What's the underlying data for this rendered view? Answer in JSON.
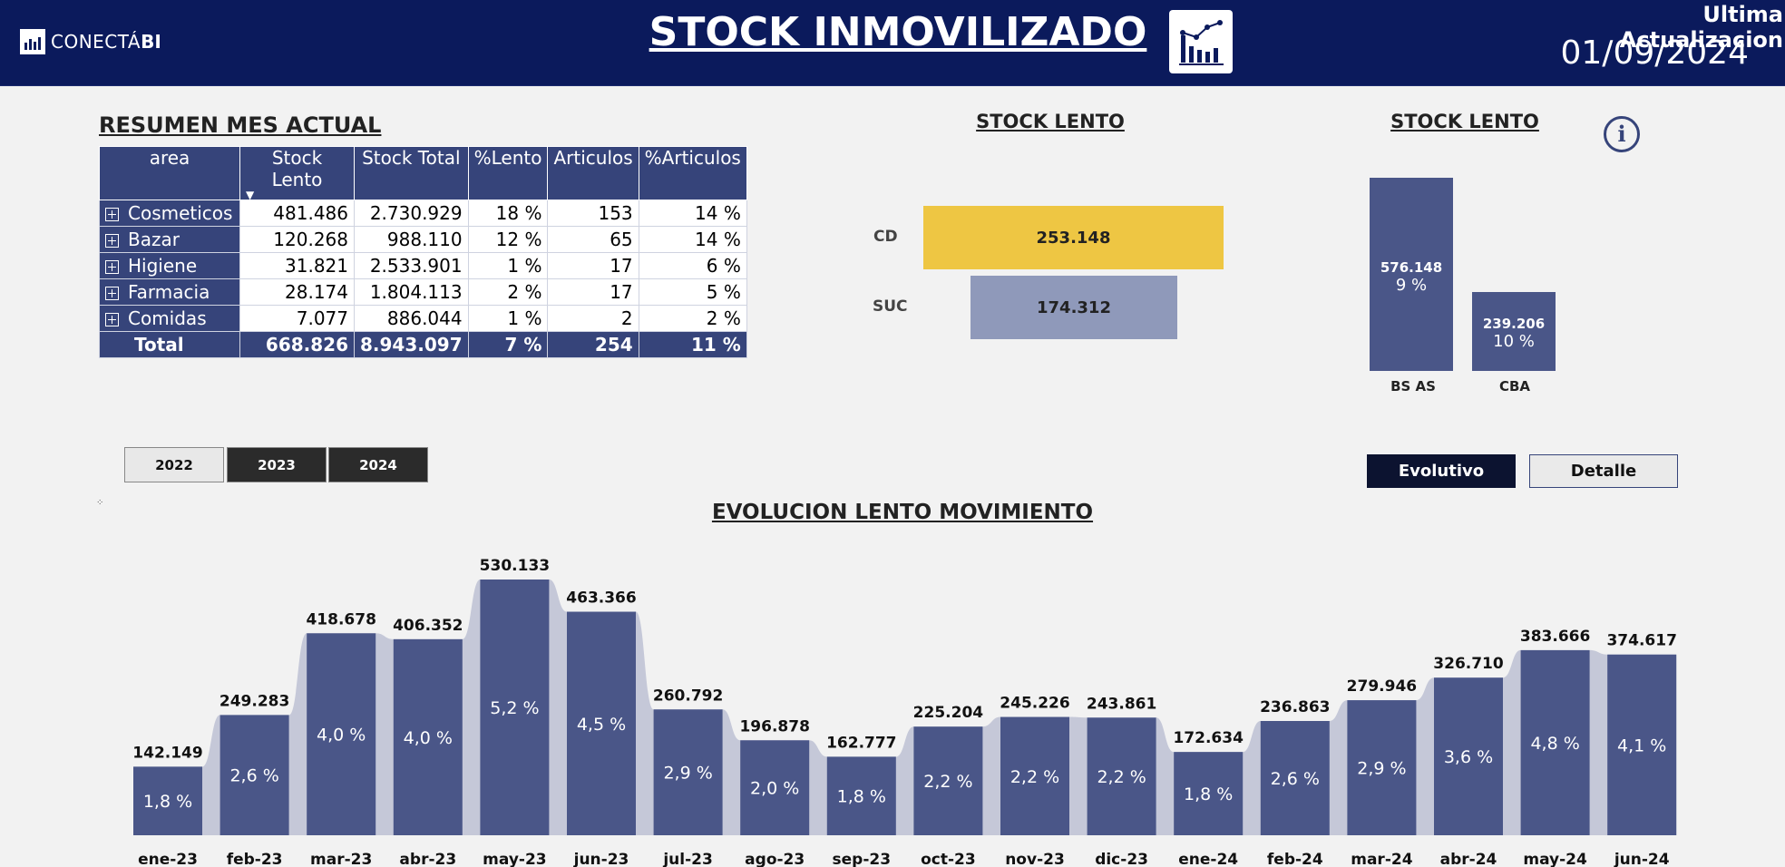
{
  "header": {
    "logo_text": "CONECTÁ",
    "logo_bold": "BI",
    "title": "STOCK INMOVILIZADO",
    "update_label": "Ultima Actualizacion",
    "update_date": "01/09/2024",
    "chart-icon": "line-bar-chart-icon"
  },
  "resumen": {
    "title": "RESUMEN MES ACTUAL",
    "columns": [
      "area",
      "Stock Lento",
      "Stock Total",
      "%Lento",
      "Articulos",
      "%Articulos"
    ],
    "rows": [
      [
        "Cosmeticos",
        "481.486",
        "2.730.929",
        "18 %",
        "153",
        "14 %"
      ],
      [
        "Bazar",
        "120.268",
        "988.110",
        "12 %",
        "65",
        "14 %"
      ],
      [
        "Higiene",
        "31.821",
        "2.533.901",
        "1 %",
        "17",
        "6 %"
      ],
      [
        "Farmacia",
        "28.174",
        "1.804.113",
        "2 %",
        "17",
        "5 %"
      ],
      [
        "Comidas",
        "7.077",
        "886.044",
        "1 %",
        "2",
        "2 %"
      ]
    ],
    "total": [
      "Total",
      "668.826",
      "8.943.097",
      "7 %",
      "254",
      "11 %"
    ]
  },
  "stock_lento_funnel": {
    "title": "STOCK LENTO",
    "items": [
      {
        "label": "CD",
        "value": "253.148",
        "color": "#eec643"
      },
      {
        "label": "SUC",
        "value": "174.312",
        "color": "#8f99ba"
      }
    ]
  },
  "stock_lento_region": {
    "title": "STOCK LENTO",
    "items": [
      {
        "label": "BS AS",
        "value": "576.148",
        "pct": "9 %"
      },
      {
        "label": "CBA",
        "value": "239.206",
        "pct": "10 %"
      }
    ]
  },
  "year_buttons": [
    "2022",
    "2023",
    "2024"
  ],
  "view_buttons": {
    "evolutivo": "Evolutivo",
    "detalle": "Detalle"
  },
  "evolucion": {
    "title": "EVOLUCION LENTO MOVIMIENTO"
  },
  "colors": {
    "header": "#0b1a5c",
    "bar": "#4a5688",
    "ribbon": "#c5c8d8",
    "funnel_cd": "#eec643",
    "funnel_suc": "#8f99ba"
  },
  "chart_data": [
    {
      "type": "bar",
      "title": "STOCK LENTO",
      "categories": [
        "CD",
        "SUC"
      ],
      "values": [
        253148,
        174312
      ]
    },
    {
      "type": "bar",
      "title": "STOCK LENTO",
      "categories": [
        "BS AS",
        "CBA"
      ],
      "values": [
        576148,
        239206
      ],
      "pct_labels": [
        "9 %",
        "10 %"
      ]
    },
    {
      "type": "bar",
      "title": "EVOLUCION LENTO MOVIMIENTO",
      "categories": [
        "ene-23",
        "feb-23",
        "mar-23",
        "abr-23",
        "may-23",
        "jun-23",
        "jul-23",
        "ago-23",
        "sep-23",
        "oct-23",
        "nov-23",
        "dic-23",
        "ene-24",
        "feb-24",
        "mar-24",
        "abr-24",
        "may-24",
        "jun-24"
      ],
      "values": [
        142149,
        249283,
        418678,
        406352,
        530133,
        463366,
        260792,
        196878,
        162777,
        225204,
        245226,
        243861,
        172634,
        236863,
        279946,
        326710,
        383666,
        374617
      ],
      "value_labels": [
        "142.149",
        "249.283",
        "418.678",
        "406.352",
        "530.133",
        "463.366",
        "260.792",
        "196.878",
        "162.777",
        "225.204",
        "245.226",
        "243.861",
        "172.634",
        "236.863",
        "279.946",
        "326.710",
        "383.666",
        "374.617"
      ],
      "pct_labels": [
        "1,8 %",
        "2,6 %",
        "4,0 %",
        "4,0 %",
        "5,2 %",
        "4,5 %",
        "2,9 %",
        "2,0 %",
        "1,8 %",
        "2,2 %",
        "2,2 %",
        "2,2 %",
        "1,8 %",
        "2,6 %",
        "2,9 %",
        "3,6 %",
        "4,8 %",
        "4,1 %"
      ]
    }
  ]
}
